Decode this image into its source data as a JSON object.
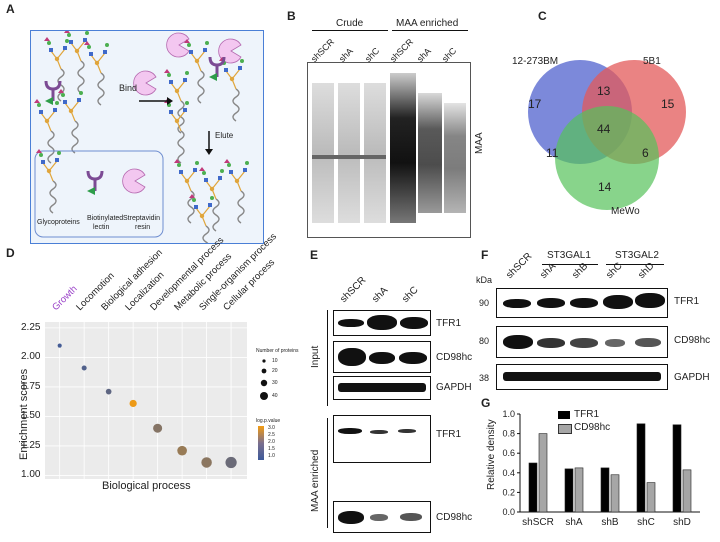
{
  "panels": {
    "A": "A",
    "B": "B",
    "C": "C",
    "D": "D",
    "E": "E",
    "F": "F",
    "G": "G"
  },
  "panelA": {
    "bind": "Bind",
    "elute": "Elute",
    "legend": [
      "Glycoproteins",
      "Biotinylated",
      "lectin",
      "Streptavidin",
      "resin"
    ],
    "colors": {
      "border": "#4a7fd6",
      "bg": "#eef4fb",
      "resin": "#f3c7f0",
      "lectin": "#7c4b94",
      "arrow": "#2e9d4a"
    }
  },
  "panelB": {
    "groups": [
      "Crude",
      "MAA enriched"
    ],
    "lanes": [
      "shSCR",
      "shA",
      "shC",
      "shSCR",
      "shA",
      "shC"
    ],
    "ylabel": "MAA"
  },
  "panelC": {
    "sets": [
      "12-273BM",
      "5B1",
      "MeWo"
    ],
    "values": {
      "a_only": "17",
      "b_only": "15",
      "c_only": "14",
      "ab": "13",
      "ac": "11",
      "bc": "6",
      "abc": "44"
    },
    "colors": {
      "a": "#5b6bd1",
      "b": "#e35a5a",
      "c": "#55c25a"
    }
  },
  "chart_data": {
    "type": "scatter",
    "categories": [
      "Growth",
      "Locomotion",
      "Biological adhesion",
      "Localization",
      "Developmental process",
      "Metabolic process",
      "Single-organism process",
      "Cellular process"
    ],
    "values": [
      2.1,
      1.91,
      1.71,
      1.61,
      1.4,
      1.21,
      1.11,
      1.11
    ],
    "sizes": [
      2,
      4,
      6,
      12,
      22,
      26,
      32,
      38
    ],
    "pvalues": [
      0.6,
      0.8,
      1.0,
      3.2,
      1.6,
      1.9,
      1.7,
      1.2
    ],
    "ylabel": "Enrichment scores",
    "xlabel": "Biological process",
    "yticks": [
      "2.25",
      "2.00",
      "1.75",
      "1.50",
      "1.25",
      "1.00"
    ],
    "ylim": [
      0.97,
      2.3
    ],
    "legend_size_title": "Number of proteins",
    "legend_sizes": [
      "10",
      "20",
      "30",
      "40"
    ],
    "legend_color_title": "log.p.value",
    "legend_colors": [
      "3.0",
      "2.5",
      "2.0",
      "1.5",
      "1.0"
    ],
    "highlight_color": "#9b44c9",
    "grid": true
  },
  "panelE": {
    "lanes": [
      "shSCR",
      "shA",
      "shC"
    ],
    "bands": [
      "TFR1",
      "CD98hc",
      "GAPDH",
      "TFR1",
      "CD98hc"
    ],
    "groups": [
      "Input",
      "MAA enriched"
    ]
  },
  "panelF": {
    "groups": [
      "ST3GAL1",
      "ST3GAL2"
    ],
    "lanes": [
      "shSCR",
      "shA",
      "shB",
      "shC",
      "shD"
    ],
    "kda_label": "kDa",
    "kda": [
      "90",
      "80",
      "38"
    ],
    "bands": [
      "TFR1",
      "CD98hc",
      "GAPDH"
    ]
  },
  "panelG": {
    "type": "bar",
    "categories": [
      "shSCR",
      "shA",
      "shB",
      "shC",
      "shD"
    ],
    "series": [
      {
        "name": "TFR1",
        "values": [
          0.5,
          0.44,
          0.45,
          0.9,
          0.89
        ],
        "color": "#000000"
      },
      {
        "name": "CD98hc",
        "values": [
          0.8,
          0.45,
          0.38,
          0.3,
          0.43
        ],
        "color": "#a6a6a6"
      }
    ],
    "ylabel": "Relative density",
    "yticks": [
      "1.0",
      "0.8",
      "0.6",
      "0.4",
      "0.2",
      "0.0"
    ],
    "ylim": [
      0,
      1.0
    ]
  }
}
